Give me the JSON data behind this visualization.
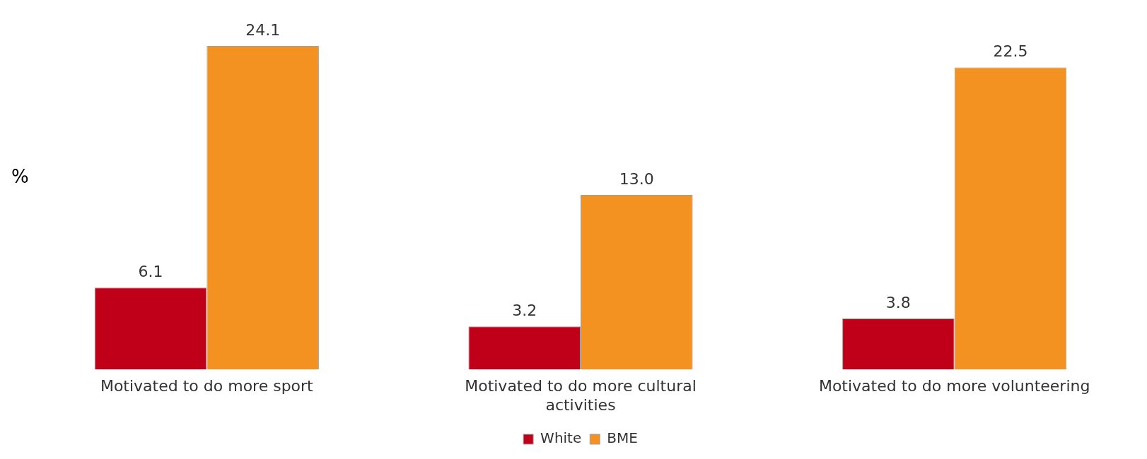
{
  "chart_data": {
    "type": "bar",
    "ylabel": "%",
    "categories": [
      "Motivated to do more sport",
      "Motivated to do more cultural activities",
      "Motivated to do more volunteering"
    ],
    "series": [
      {
        "name": "White",
        "color": "#c00018",
        "values": [
          6.1,
          3.2,
          3.8
        ],
        "value_labels": [
          "6.1",
          "3.2",
          "3.8"
        ]
      },
      {
        "name": "BME",
        "color": "#f39121",
        "values": [
          24.1,
          13.0,
          22.5
        ],
        "value_labels": [
          "24.1",
          "13.0",
          "22.5"
        ]
      }
    ],
    "legend": "bottom"
  }
}
